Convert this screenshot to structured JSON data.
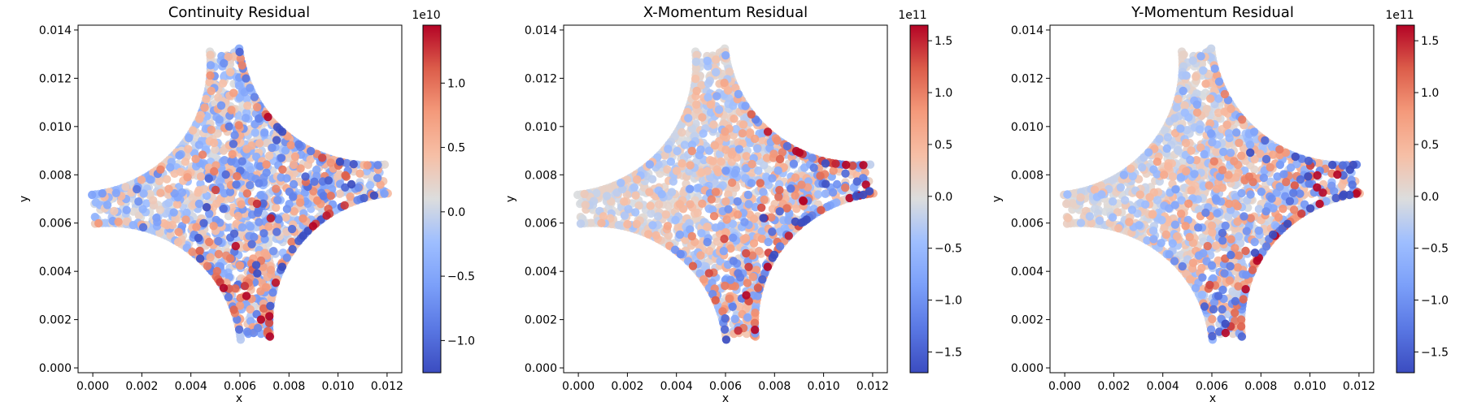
{
  "colormap": "coolwarm",
  "colors": {
    "cmap_low": "#3b4cc0",
    "cmap_mid": "#dddddd",
    "cmap_high": "#b40426",
    "axes": "#000000",
    "background": "#ffffff"
  },
  "chart_data": [
    {
      "type": "scatter",
      "title": "Continuity Residual",
      "xlabel": "x",
      "ylabel": "y",
      "xlim": [
        -0.0006,
        0.0126
      ],
      "ylim": [
        -0.0002,
        0.0142
      ],
      "x_ticks": [
        "0.000",
        "0.002",
        "0.004",
        "0.006",
        "0.008",
        "0.010",
        "0.012"
      ],
      "y_ticks": [
        "0.000",
        "0.002",
        "0.004",
        "0.006",
        "0.008",
        "0.010",
        "0.012",
        "0.014"
      ],
      "grid": false,
      "domain_shape": "square plate 0–0.012 with quarter-circle cutouts at four corners",
      "colorbar": {
        "multiplier": "1e10",
        "vmin": -1.25,
        "vmax": 1.45,
        "ticks": [
          "−1.0",
          "−0.5",
          "0.0",
          "0.5",
          "1.0"
        ]
      },
      "value_pattern": "mostly near zero; mixed ±0.5 across interior; strongest positive/negative near bottom edge and right boundary"
    },
    {
      "type": "scatter",
      "title": "X-Momentum Residual",
      "xlabel": "x",
      "ylabel": "y",
      "xlim": [
        -0.0006,
        0.0126
      ],
      "ylim": [
        -0.0002,
        0.0142
      ],
      "x_ticks": [
        "0.000",
        "0.002",
        "0.004",
        "0.006",
        "0.008",
        "0.010",
        "0.012"
      ],
      "y_ticks": [
        "0.000",
        "0.002",
        "0.004",
        "0.006",
        "0.008",
        "0.010",
        "0.012",
        "0.014"
      ],
      "grid": false,
      "domain_shape": "square plate 0–0.012 with quarter-circle cutouts at four corners",
      "colorbar": {
        "multiplier": "1e11",
        "vmin": -1.7,
        "vmax": 1.65,
        "ticks": [
          "−1.5",
          "−1.0",
          "−0.5",
          "0.0",
          "0.5",
          "1.0",
          "1.5"
        ]
      },
      "value_pattern": "near zero top-left; strong positive and negative along lower-right boundary and bottom cutout"
    },
    {
      "type": "scatter",
      "title": "Y-Momentum Residual",
      "xlabel": "x",
      "ylabel": "y",
      "xlim": [
        -0.0006,
        0.0126
      ],
      "ylim": [
        -0.0002,
        0.0142
      ],
      "x_ticks": [
        "0.000",
        "0.002",
        "0.004",
        "0.006",
        "0.008",
        "0.010",
        "0.012"
      ],
      "y_ticks": [
        "0.000",
        "0.002",
        "0.004",
        "0.006",
        "0.008",
        "0.010",
        "0.012",
        "0.014"
      ],
      "grid": false,
      "domain_shape": "square plate 0–0.012 with quarter-circle cutouts at four corners",
      "colorbar": {
        "multiplier": "1e11",
        "vmin": -1.7,
        "vmax": 1.65,
        "ticks": [
          "−1.5",
          "−1.0",
          "−0.5",
          "0.0",
          "0.5",
          "1.0",
          "1.5"
        ]
      },
      "value_pattern": "near zero top-left; strong mixed residuals along bottom edge and lower-right cutout"
    }
  ]
}
